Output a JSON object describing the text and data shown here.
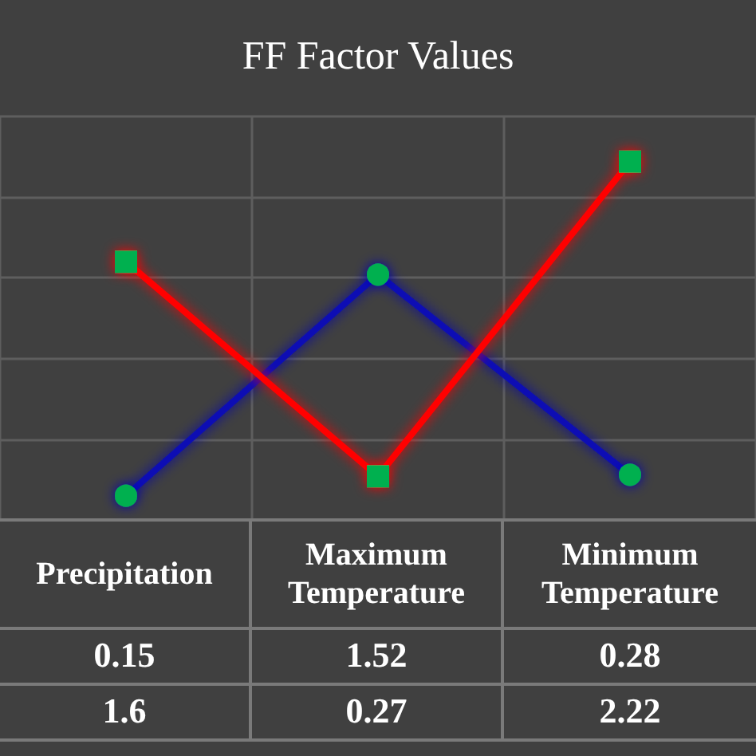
{
  "chart_data": {
    "type": "line",
    "title": "FF Factor Values",
    "categories": [
      "Precipitation",
      "Maximum Temperature",
      "Minimum Temperature"
    ],
    "series": [
      {
        "color": "#0a10b4",
        "marker": "circle",
        "values": [
          0.15,
          1.52,
          0.28
        ]
      },
      {
        "color": "#ff0000",
        "marker": "square",
        "values": [
          1.6,
          0.27,
          2.22
        ]
      }
    ],
    "ylim": [
      0,
      2.5
    ],
    "yticks": [
      {
        "value": 0,
        "label": null
      },
      {
        "value": 0.5,
        "label": null
      },
      {
        "value": 1,
        "label": null
      },
      {
        "value": 1.5,
        "label": null
      },
      {
        "value": 2,
        "label": null
      },
      {
        "value": 2.5,
        "label": null
      }
    ],
    "grid": true,
    "tick_labels": "x",
    "data_labels": true
  }
}
